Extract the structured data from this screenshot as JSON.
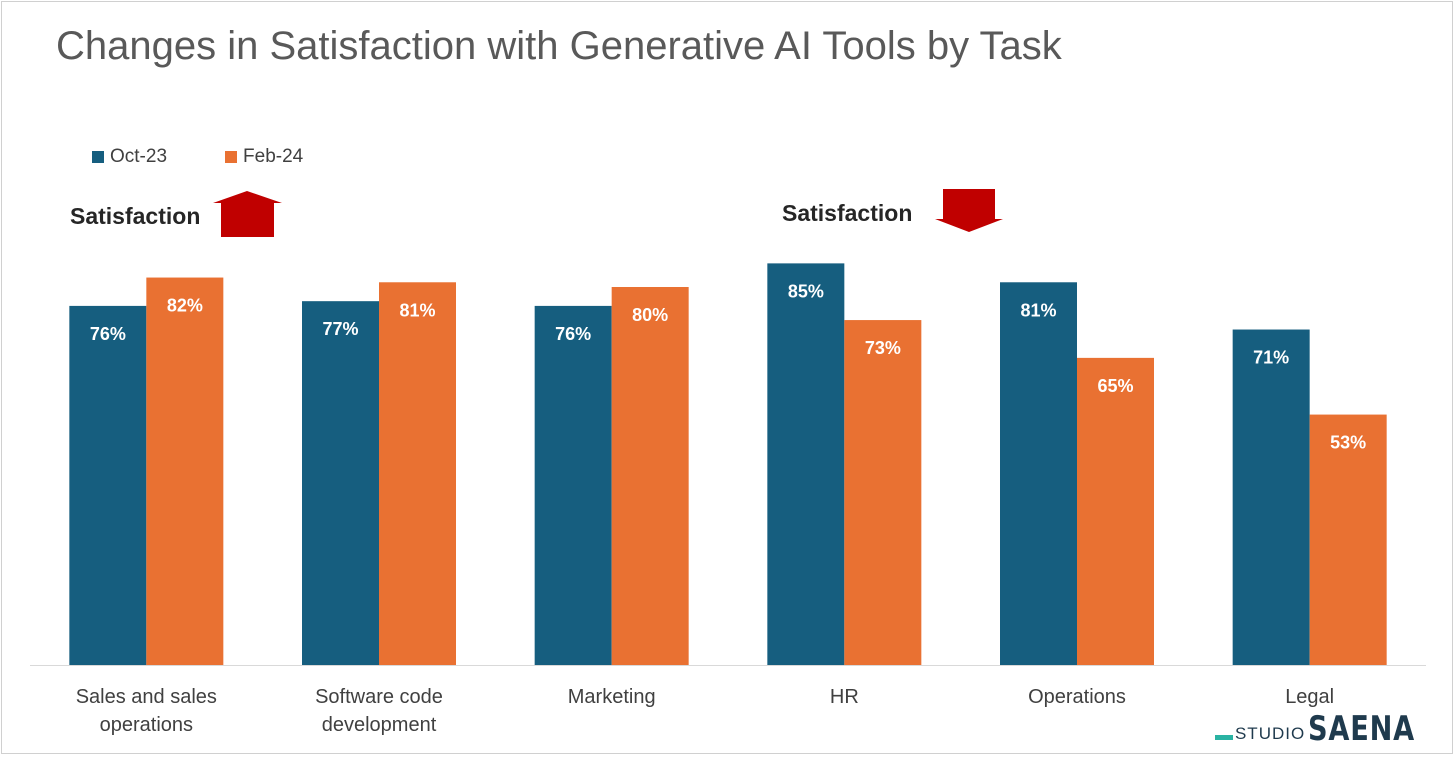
{
  "chart_data": {
    "type": "bar",
    "title": "Changes in Satisfaction with Generative AI Tools by Task",
    "categories": [
      [
        "Sales and sales",
        "operations"
      ],
      [
        "Software code",
        "development"
      ],
      [
        "Marketing"
      ],
      [
        "HR"
      ],
      [
        "Operations"
      ],
      [
        "Legal"
      ]
    ],
    "series": [
      {
        "name": "Oct-23",
        "color": "#165e7f",
        "values": [
          76,
          77,
          76,
          85,
          81,
          71
        ],
        "labels": [
          "76%",
          "77%",
          "76%",
          "85%",
          "81%",
          "71%"
        ]
      },
      {
        "name": "Feb-24",
        "color": "#e97132",
        "values": [
          82,
          81,
          80,
          73,
          65,
          53
        ],
        "labels": [
          "82%",
          "81%",
          "80%",
          "73%",
          "65%",
          "53%"
        ]
      }
    ],
    "ylim": [
      0,
      100
    ],
    "grid": false,
    "legend": "top-left",
    "annotations": [
      {
        "text": "Satisfaction",
        "arrow": "up",
        "arrow_color": "#c00000",
        "near": "Sales and sales operations"
      },
      {
        "text": "Satisfaction",
        "arrow": "down",
        "arrow_color": "#c00000",
        "near": "HR"
      }
    ]
  },
  "logo": {
    "small": "STUDIO",
    "big": "SAENA",
    "accent_color": "#2ab3a3",
    "text_color": "#1f3a4d"
  }
}
